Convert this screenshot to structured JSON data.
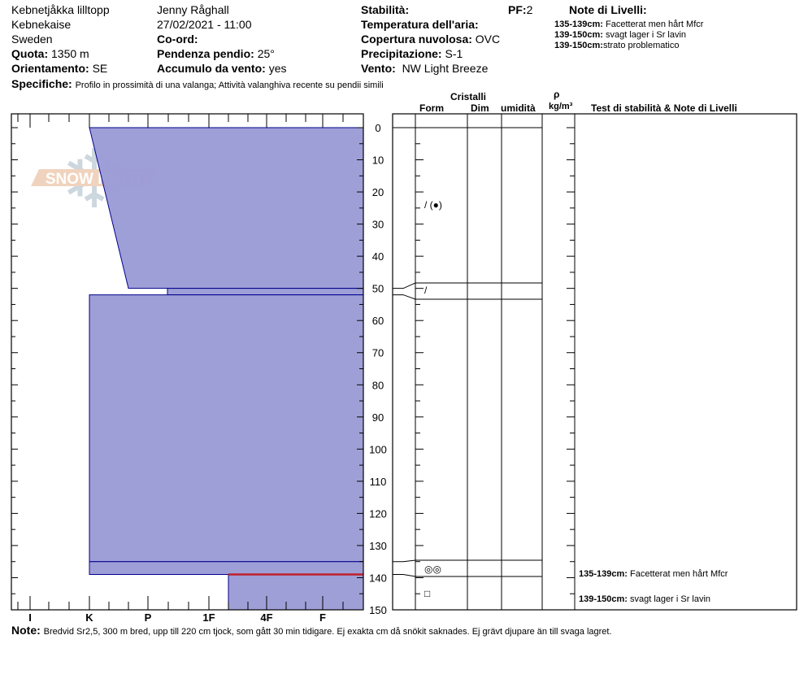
{
  "header": {
    "location": "Kebnetjåkka lilltopp",
    "region": "Kebnekaise",
    "country": "Sweden",
    "elevation_label": "Quota:",
    "elevation": "1350 m",
    "aspect_label": "Orientamento:",
    "aspect": "SE",
    "observer": "Jenny Råghall",
    "datetime": "27/02/2021 - 11:00",
    "coord_label": "Co-ord:",
    "slope_label": "Pendenza pendio:",
    "slope": "25°",
    "wind_loading_label": "Accumulo da vento:",
    "wind_loading": "yes",
    "stability_label": "Stabilità:",
    "pf_label": "PF:",
    "pf": "2",
    "air_temp_label": "Temperatura dell'aria:",
    "sky_label": "Copertura nuvolosa:",
    "sky": "OVC",
    "precip_label": "Precipitazione:",
    "precip": "S-1",
    "wind_label": "Vento:",
    "wind": "NW Light Breeze",
    "specifics_label": "Specifiche:",
    "specifics": "Profilo in prossimità di una valanga; Attività valanghiva recente su pendii simili",
    "layer_notes_title": "Note di Livelli:",
    "layer_notes": [
      {
        "range": "135-139cm:",
        "text": "Facetterat men hårt Mfcr"
      },
      {
        "range": "139-150cm:",
        "text": "svagt lager i Sr lavin"
      },
      {
        "range": "139-150cm:",
        "text": "strato problematico"
      }
    ]
  },
  "columns": {
    "crystals": "Cristalli",
    "form": "Form",
    "size": "Dim",
    "moisture": "umidità",
    "density_symbol": "ρ",
    "density_unit": "kg/m³",
    "stability_notes": "Test di stabilità & Note di Livelli"
  },
  "footer": {
    "note_label": "Note:",
    "note": "Bredvid Sr2,5, 300 m bred, upp till 220 cm tjock, som gått 30 min tidigare. Ej exakta cm då snökit saknades. Ej grävt djupare än till svaga lagret."
  },
  "logo_text": "SNOW PILOT",
  "chart_data": {
    "type": "snow-profile",
    "depth_axis": {
      "unit": "cm",
      "range": [
        0,
        150
      ],
      "ticks": [
        0,
        10,
        20,
        30,
        40,
        50,
        60,
        70,
        80,
        90,
        100,
        110,
        120,
        130,
        140,
        150
      ]
    },
    "hardness_axis": {
      "ticks": [
        "I",
        "K",
        "P",
        "1F",
        "4F",
        "F"
      ]
    },
    "fill_color": "#9a9ad6",
    "edge_color": "#00008b",
    "weak_layer_color": "#c0202a",
    "layers": [
      {
        "top": 0,
        "bottom": 50,
        "hardness_top": "K",
        "hardness_bottom": "P+",
        "grain": "/ (●)"
      },
      {
        "top": 50,
        "bottom": 52,
        "hardness_top": "P-",
        "hardness_bottom": "P-",
        "grain": "/"
      },
      {
        "top": 52,
        "bottom": 135,
        "hardness_top": "K",
        "hardness_bottom": "K",
        "grain": ""
      },
      {
        "top": 135,
        "bottom": 139,
        "hardness_top": "K",
        "hardness_bottom": "K",
        "grain": "◎◎"
      },
      {
        "top": 139,
        "bottom": 150,
        "hardness_top": "1F-",
        "hardness_bottom": "1F-",
        "grain": "□"
      }
    ],
    "weak_layer_depth": 139,
    "stability_notes": [
      {
        "depth": 137,
        "range": "135-139cm:",
        "text": "Facetterat men hårt Mfcr"
      },
      {
        "depth": 145,
        "range": "139-150cm:",
        "text": "svagt lager i Sr lavin"
      }
    ]
  }
}
